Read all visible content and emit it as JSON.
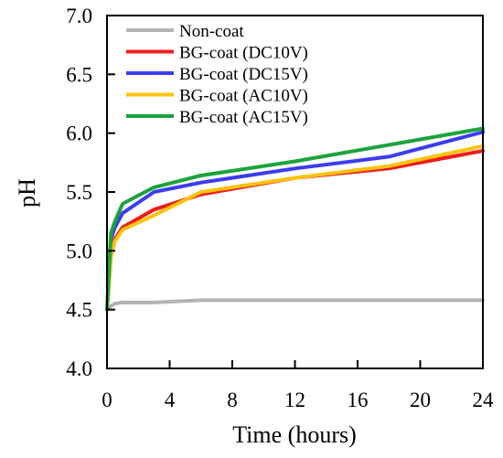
{
  "chart_data": {
    "type": "line",
    "xlabel": "Time (hours)",
    "ylabel": "pH",
    "xlim": [
      0,
      24
    ],
    "ylim": [
      4.0,
      7.0
    ],
    "xticks": [
      "0",
      "4",
      "8",
      "12",
      "16",
      "20",
      "24"
    ],
    "yticks": [
      "4.0",
      "4.5",
      "5.0",
      "5.5",
      "6.0",
      "6.5",
      "7.0"
    ],
    "grid": false,
    "legend_position": "top-left",
    "series": [
      {
        "name": "Non-coat",
        "color": "#b3b3b3",
        "x": [
          0,
          0.25,
          0.5,
          1,
          3,
          6,
          12,
          18,
          24
        ],
        "y": [
          4.5,
          4.53,
          4.55,
          4.56,
          4.56,
          4.58,
          4.58,
          4.58,
          4.58
        ]
      },
      {
        "name": "BG-coat (DC10V)",
        "color": "#ee1c1c",
        "x": [
          0,
          0.25,
          0.5,
          1,
          3,
          6,
          12,
          18,
          24
        ],
        "y": [
          4.5,
          4.95,
          5.1,
          5.2,
          5.35,
          5.48,
          5.62,
          5.7,
          5.85
        ]
      },
      {
        "name": "BG-coat (DC15V)",
        "color": "#3c3cf0",
        "x": [
          0,
          0.25,
          0.5,
          1,
          3,
          6,
          12,
          18,
          24
        ],
        "y": [
          4.5,
          5.1,
          5.2,
          5.32,
          5.5,
          5.58,
          5.7,
          5.8,
          6.01
        ]
      },
      {
        "name": "BG-coat (AC10V)",
        "color": "#ffc20e",
        "x": [
          0,
          0.25,
          0.5,
          1,
          3,
          6,
          12,
          18,
          24
        ],
        "y": [
          4.5,
          4.95,
          5.08,
          5.18,
          5.3,
          5.5,
          5.62,
          5.72,
          5.89
        ]
      },
      {
        "name": "BG-coat (AC15V)",
        "color": "#1ca33c",
        "x": [
          0,
          0.25,
          0.5,
          1,
          3,
          6,
          12,
          18,
          24
        ],
        "y": [
          4.5,
          5.15,
          5.25,
          5.4,
          5.54,
          5.64,
          5.76,
          5.9,
          6.04
        ]
      }
    ]
  }
}
